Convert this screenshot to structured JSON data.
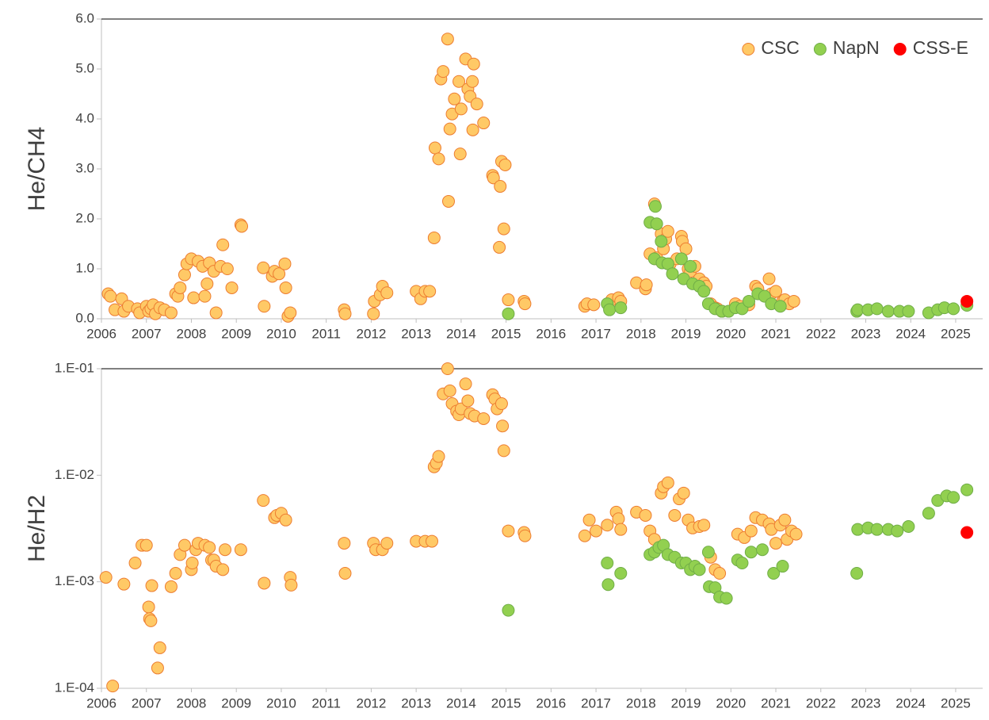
{
  "chart_data": [
    {
      "type": "scatter",
      "y_label": "He/CH4",
      "legend": "upper right",
      "xlim": [
        2006,
        2025.6
      ],
      "xticks": [
        2006,
        2007,
        2008,
        2009,
        2010,
        2011,
        2012,
        2013,
        2014,
        2015,
        2016,
        2017,
        2018,
        2019,
        2020,
        2021,
        2022,
        2023,
        2024,
        2025
      ],
      "ylim": [
        0,
        6
      ],
      "yticks": [
        {
          "value": 0,
          "label": "0.0"
        },
        {
          "value": 1,
          "label": "1.0"
        },
        {
          "value": 2,
          "label": "2.0"
        },
        {
          "value": 3,
          "label": "3.0"
        },
        {
          "value": 4,
          "label": "4.0"
        },
        {
          "value": 5,
          "label": "5.0"
        },
        {
          "value": 6,
          "label": "6.0"
        }
      ],
      "series": [
        {
          "name": "CSC",
          "color": "#FFC966",
          "edge_color": "#ED7D31",
          "x": [
            2006.15,
            2006.2,
            2006.3,
            2006.45,
            2006.5,
            2006.6,
            2006.8,
            2006.85,
            2007.0,
            2007.05,
            2007.1,
            2007.15,
            2007.2,
            2007.3,
            2007.4,
            2007.55,
            2007.65,
            2007.7,
            2007.75,
            2007.85,
            2007.9,
            2008.0,
            2008.05,
            2008.15,
            2008.25,
            2008.3,
            2008.35,
            2008.4,
            2008.5,
            2008.55,
            2008.65,
            2008.7,
            2008.8,
            2008.9,
            2009.1,
            2009.12,
            2009.6,
            2009.62,
            2009.8,
            2009.85,
            2009.95,
            2010.08,
            2010.1,
            2010.15,
            2010.2,
            2011.4,
            2011.42,
            2012.05,
            2012.07,
            2012.2,
            2012.25,
            2012.35,
            2013.0,
            2013.1,
            2013.2,
            2013.3,
            2013.4,
            2013.42,
            2013.5,
            2013.55,
            2013.6,
            2013.7,
            2013.72,
            2013.75,
            2013.8,
            2013.85,
            2013.95,
            2013.98,
            2014.0,
            2014.1,
            2014.15,
            2014.2,
            2014.25,
            2014.28,
            2014.26,
            2014.35,
            2014.5,
            2014.7,
            2014.72,
            2014.85,
            2014.87,
            2014.9,
            2014.95,
            2014.98,
            2015.05,
            2015.4,
            2015.42,
            2016.75,
            2016.8,
            2016.95,
            2017.35,
            2017.5,
            2017.55,
            2017.9,
            2018.1,
            2018.12,
            2018.2,
            2018.3,
            2018.32,
            2018.35,
            2018.45,
            2018.5,
            2018.55,
            2018.6,
            2018.65,
            2018.8,
            2018.9,
            2018.92,
            2019.0,
            2019.05,
            2019.1,
            2019.2,
            2019.3,
            2019.4,
            2019.45,
            2019.55,
            2019.65,
            2019.7,
            2019.8,
            2020.1,
            2020.2,
            2020.4,
            2020.55,
            2020.6,
            2020.85,
            2020.9,
            2021.0,
            2021.15,
            2021.2,
            2021.3,
            2021.4
          ],
          "values": [
            0.5,
            0.45,
            0.18,
            0.4,
            0.15,
            0.25,
            0.2,
            0.12,
            0.25,
            0.15,
            0.2,
            0.28,
            0.1,
            0.22,
            0.18,
            0.12,
            0.5,
            0.45,
            0.62,
            0.88,
            1.1,
            1.2,
            0.42,
            1.15,
            1.05,
            0.45,
            0.7,
            1.12,
            0.95,
            0.12,
            1.05,
            1.48,
            1.0,
            0.62,
            1.88,
            1.85,
            1.02,
            0.25,
            0.85,
            0.95,
            0.9,
            1.1,
            0.62,
            0.05,
            0.12,
            0.18,
            0.1,
            0.1,
            0.35,
            0.48,
            0.65,
            0.52,
            0.55,
            0.4,
            0.55,
            0.55,
            1.62,
            3.42,
            3.2,
            4.8,
            4.95,
            5.6,
            2.35,
            3.8,
            4.1,
            4.4,
            4.75,
            3.3,
            4.2,
            5.2,
            4.6,
            4.45,
            4.75,
            5.1,
            3.78,
            4.3,
            3.92,
            2.87,
            2.82,
            1.43,
            2.65,
            3.15,
            1.8,
            3.08,
            0.38,
            0.35,
            0.3,
            0.25,
            0.3,
            0.28,
            0.38,
            0.42,
            0.35,
            0.72,
            0.6,
            0.68,
            1.3,
            2.3,
            1.2,
            1.22,
            1.7,
            1.4,
            1.6,
            1.75,
            1.1,
            1.2,
            1.65,
            1.55,
            1.4,
            1.0,
            0.95,
            1.05,
            0.8,
            0.72,
            0.65,
            0.3,
            0.22,
            0.2,
            0.15,
            0.3,
            0.25,
            0.28,
            0.65,
            0.6,
            0.8,
            0.5,
            0.55,
            0.35,
            0.38,
            0.3,
            0.35
          ]
        },
        {
          "name": "NapN",
          "color": "#92D050",
          "edge_color": "#70AD47",
          "x": [
            2015.05,
            2017.25,
            2017.3,
            2017.55,
            2018.2,
            2018.3,
            2018.32,
            2018.35,
            2018.45,
            2018.47,
            2018.6,
            2018.7,
            2018.9,
            2018.95,
            2019.1,
            2019.15,
            2019.3,
            2019.4,
            2019.5,
            2019.65,
            2019.8,
            2019.95,
            2020.1,
            2020.25,
            2020.4,
            2020.6,
            2020.75,
            2020.9,
            2021.1,
            2022.8,
            2022.82,
            2023.05,
            2023.25,
            2023.5,
            2023.75,
            2023.95,
            2024.4,
            2024.6,
            2024.75,
            2024.95,
            2025.25
          ],
          "values": [
            0.1,
            0.3,
            0.18,
            0.22,
            1.93,
            1.2,
            2.25,
            1.9,
            1.55,
            1.12,
            1.1,
            0.9,
            1.2,
            0.8,
            1.05,
            0.7,
            0.65,
            0.55,
            0.3,
            0.2,
            0.15,
            0.15,
            0.22,
            0.2,
            0.35,
            0.5,
            0.45,
            0.3,
            0.25,
            0.15,
            0.18,
            0.18,
            0.2,
            0.15,
            0.15,
            0.15,
            0.12,
            0.18,
            0.22,
            0.2,
            0.27
          ]
        },
        {
          "name": "CSS-E",
          "color": "#FF0000",
          "edge_color": "#FF0000",
          "x": [
            2025.25
          ],
          "values": [
            0.35
          ]
        }
      ]
    },
    {
      "type": "scatter",
      "y_label": "He/H2",
      "log_scale": true,
      "xlim": [
        2006,
        2025.6
      ],
      "xticks": [
        2006,
        2007,
        2008,
        2009,
        2010,
        2011,
        2012,
        2013,
        2014,
        2015,
        2016,
        2017,
        2018,
        2019,
        2020,
        2021,
        2022,
        2023,
        2024,
        2025
      ],
      "ylim": [
        0.0001,
        0.1
      ],
      "yticks": [
        {
          "value": 0.0001,
          "label": "1.E-04"
        },
        {
          "value": 0.001,
          "label": "1.E-03"
        },
        {
          "value": 0.01,
          "label": "1.E-02"
        },
        {
          "value": 0.1,
          "label": "1.E-01"
        }
      ],
      "series": [
        {
          "name": "CSC",
          "color": "#FFC966",
          "edge_color": "#ED7D31",
          "x": [
            2006.1,
            2006.25,
            2006.5,
            2006.75,
            2006.9,
            2007.0,
            2007.05,
            2007.07,
            2007.1,
            2007.12,
            2007.25,
            2007.3,
            2007.55,
            2007.65,
            2007.75,
            2007.85,
            2008.0,
            2008.02,
            2008.1,
            2008.15,
            2008.3,
            2008.4,
            2008.45,
            2008.5,
            2008.55,
            2008.7,
            2008.75,
            2009.1,
            2009.6,
            2009.62,
            2009.85,
            2009.9,
            2010.0,
            2010.1,
            2010.2,
            2010.22,
            2011.4,
            2011.42,
            2012.05,
            2012.1,
            2012.25,
            2012.35,
            2013.0,
            2013.2,
            2013.35,
            2013.4,
            2013.45,
            2013.5,
            2013.6,
            2013.7,
            2013.75,
            2013.8,
            2013.9,
            2013.95,
            2014.0,
            2014.1,
            2014.15,
            2014.2,
            2014.3,
            2014.5,
            2014.7,
            2014.75,
            2014.8,
            2014.9,
            2014.92,
            2014.95,
            2015.05,
            2015.4,
            2015.42,
            2016.75,
            2016.85,
            2017.0,
            2017.25,
            2017.45,
            2017.5,
            2017.55,
            2017.9,
            2018.1,
            2018.2,
            2018.3,
            2018.45,
            2018.5,
            2018.6,
            2018.75,
            2018.85,
            2018.95,
            2019.05,
            2019.15,
            2019.3,
            2019.4,
            2019.55,
            2019.65,
            2019.75,
            2020.15,
            2020.3,
            2020.45,
            2020.55,
            2020.7,
            2020.85,
            2020.9,
            2021.0,
            2021.1,
            2021.2,
            2021.25,
            2021.35,
            2021.45
          ],
          "values": [
            0.0011,
            0.000105,
            0.00095,
            0.0015,
            0.0022,
            0.0022,
            0.00058,
            0.00045,
            0.00043,
            0.00092,
            0.000155,
            0.00024,
            0.0009,
            0.0012,
            0.0018,
            0.0022,
            0.0013,
            0.0015,
            0.002,
            0.0023,
            0.0022,
            0.0021,
            0.0016,
            0.0016,
            0.0014,
            0.0013,
            0.002,
            0.002,
            0.0058,
            0.00097,
            0.004,
            0.0042,
            0.0044,
            0.0038,
            0.0011,
            0.00093,
            0.0023,
            0.0012,
            0.0023,
            0.002,
            0.002,
            0.0023,
            0.0024,
            0.0024,
            0.0024,
            0.012,
            0.013,
            0.015,
            0.058,
            0.1,
            0.062,
            0.047,
            0.04,
            0.037,
            0.042,
            0.072,
            0.05,
            0.038,
            0.036,
            0.034,
            0.057,
            0.052,
            0.042,
            0.047,
            0.029,
            0.017,
            0.003,
            0.0029,
            0.0027,
            0.0027,
            0.0038,
            0.003,
            0.0034,
            0.0045,
            0.0039,
            0.0031,
            0.0045,
            0.0042,
            0.003,
            0.0025,
            0.0068,
            0.0078,
            0.0085,
            0.0042,
            0.006,
            0.0068,
            0.0038,
            0.0032,
            0.0033,
            0.0034,
            0.0017,
            0.0013,
            0.0012,
            0.0028,
            0.0026,
            0.003,
            0.004,
            0.0038,
            0.0035,
            0.0031,
            0.0023,
            0.0034,
            0.0038,
            0.0025,
            0.003,
            0.0028
          ]
        },
        {
          "name": "NapN",
          "color": "#92D050",
          "edge_color": "#70AD47",
          "x": [
            2015.05,
            2017.25,
            2017.27,
            2017.55,
            2018.2,
            2018.3,
            2018.4,
            2018.5,
            2018.6,
            2018.75,
            2018.9,
            2019.0,
            2019.1,
            2019.2,
            2019.3,
            2019.5,
            2019.52,
            2019.65,
            2019.75,
            2019.9,
            2020.15,
            2020.25,
            2020.45,
            2020.7,
            2020.95,
            2021.15,
            2022.8,
            2022.82,
            2023.05,
            2023.25,
            2023.5,
            2023.7,
            2023.95,
            2024.4,
            2024.6,
            2024.8,
            2024.95,
            2025.25
          ],
          "values": [
            0.00054,
            0.0015,
            0.00094,
            0.0012,
            0.0018,
            0.0019,
            0.0021,
            0.0022,
            0.0018,
            0.0017,
            0.0015,
            0.0015,
            0.0013,
            0.0014,
            0.0013,
            0.0019,
            0.0009,
            0.00088,
            0.00072,
            0.0007,
            0.0016,
            0.0015,
            0.0019,
            0.002,
            0.0012,
            0.0014,
            0.0012,
            0.0031,
            0.0032,
            0.0031,
            0.0031,
            0.003,
            0.0033,
            0.0044,
            0.0058,
            0.0064,
            0.0062,
            0.0073
          ]
        },
        {
          "name": "CSS-E",
          "color": "#FF0000",
          "edge_color": "#FF0000",
          "x": [
            2025.25
          ],
          "values": [
            0.0029
          ]
        }
      ]
    }
  ]
}
